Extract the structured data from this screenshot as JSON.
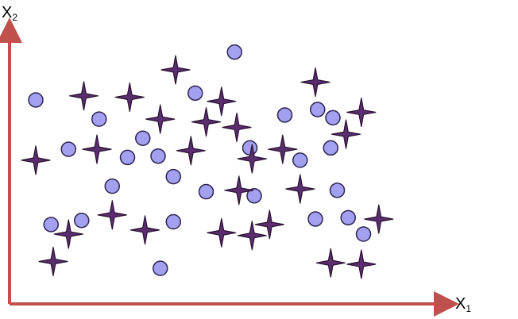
{
  "chart_data": {
    "type": "scatter",
    "title": "",
    "xlabel": "X",
    "xlabel_sub": "1",
    "ylabel": "X",
    "ylabel_sub": "2",
    "xlim": [
      0,
      100
    ],
    "ylim": [
      0,
      100
    ],
    "grid": false,
    "legend": "none",
    "colors": {
      "axis": "#c0504d",
      "circle_fill": "#a3a0f0",
      "circle_stroke": "#2e2450",
      "star_fill": "#5a2d6e",
      "star_stroke": "#2a1232"
    },
    "series": [
      {
        "marker": "circle",
        "points": [
          [
            6.0,
            74.5
          ],
          [
            13.5,
            56.5
          ],
          [
            20.5,
            67.5
          ],
          [
            23.5,
            43.0
          ],
          [
            27.0,
            53.5
          ],
          [
            30.5,
            60.5
          ],
          [
            34.0,
            54.0
          ],
          [
            37.5,
            46.5
          ],
          [
            42.5,
            77.0
          ],
          [
            55.0,
            57.0
          ],
          [
            45.0,
            41.0
          ],
          [
            51.5,
            92.0
          ],
          [
            63.0,
            69.0
          ],
          [
            66.5,
            52.5
          ],
          [
            70.5,
            71.0
          ],
          [
            74.0,
            68.0
          ],
          [
            73.5,
            57.0
          ],
          [
            75.0,
            41.5
          ],
          [
            56.0,
            39.5
          ],
          [
            9.5,
            29.0
          ],
          [
            16.5,
            30.5
          ],
          [
            37.5,
            30.0
          ],
          [
            70.0,
            31.0
          ],
          [
            77.5,
            31.5
          ],
          [
            81.0,
            25.5
          ],
          [
            34.5,
            13.0
          ]
        ]
      },
      {
        "marker": "star",
        "points": [
          [
            17.0,
            76.0
          ],
          [
            27.5,
            75.5
          ],
          [
            38.0,
            85.5
          ],
          [
            48.5,
            74.0
          ],
          [
            70.0,
            81.0
          ],
          [
            80.5,
            70.0
          ],
          [
            34.5,
            67.5
          ],
          [
            45.0,
            66.5
          ],
          [
            52.0,
            64.5
          ],
          [
            6.0,
            52.5
          ],
          [
            20.0,
            56.5
          ],
          [
            41.5,
            56.0
          ],
          [
            55.5,
            53.0
          ],
          [
            62.5,
            56.5
          ],
          [
            77.0,
            62.0
          ],
          [
            52.5,
            41.5
          ],
          [
            66.5,
            42.0
          ],
          [
            23.5,
            32.5
          ],
          [
            59.5,
            29.0
          ],
          [
            84.5,
            31.0
          ],
          [
            13.5,
            25.5
          ],
          [
            31.0,
            27.0
          ],
          [
            48.5,
            26.0
          ],
          [
            55.5,
            25.0
          ],
          [
            10.0,
            15.5
          ],
          [
            73.5,
            15.0
          ],
          [
            80.5,
            14.5
          ]
        ]
      }
    ]
  }
}
